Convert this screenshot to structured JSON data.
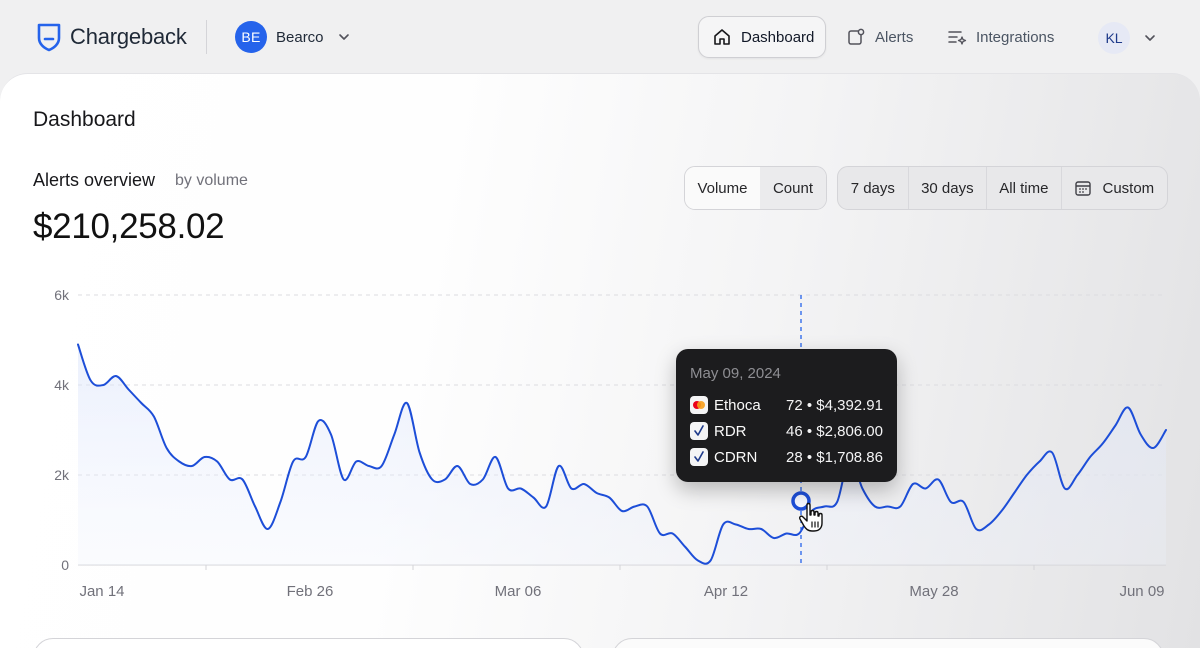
{
  "app": {
    "name": "Chargeback"
  },
  "org": {
    "initials": "BE",
    "name": "Bearco"
  },
  "nav": {
    "items": [
      {
        "label": "Dashboard",
        "icon": "home-icon",
        "active": true
      },
      {
        "label": "Alerts",
        "icon": "alert-icon",
        "active": false
      },
      {
        "label": "Integrations",
        "icon": "integrations-icon",
        "active": false
      }
    ]
  },
  "user": {
    "initials": "KL"
  },
  "page": {
    "title": "Dashboard"
  },
  "overview": {
    "title": "Alerts overview",
    "subtitle": "by volume",
    "total": "$210,258.02"
  },
  "metric_toggle": {
    "options": [
      "Volume",
      "Count"
    ],
    "selected": "Volume"
  },
  "range_toggle": {
    "options": [
      "7 days",
      "30 days",
      "All time",
      "Custom"
    ],
    "custom_icon": "calendar-icon"
  },
  "tooltip": {
    "date": "May 09, 2024",
    "rows": [
      {
        "name": "Ethoca",
        "value": "72 • $4,392.91",
        "icon": "mastercard-icon"
      },
      {
        "name": "RDR",
        "value": "46 • $2,806.00",
        "icon": "visa-check-icon"
      },
      {
        "name": "CDRN",
        "value": "28 • $1,708.86",
        "icon": "visa-check-icon"
      }
    ]
  },
  "colors": {
    "accent": "#2563eb",
    "line": "#1d4ed8",
    "tooltip_bg": "#1c1c1e"
  },
  "chart_data": {
    "type": "area",
    "ylim": [
      0,
      6000
    ],
    "yticks": [
      "6k",
      "4k",
      "2k",
      "0"
    ],
    "xtick_labels": [
      "Jan 14",
      "Feb 26",
      "Mar 06",
      "Apr 12",
      "May 28",
      "Jun 09"
    ],
    "grid": true,
    "highlight_date": "May 09, 2024",
    "series": [
      {
        "values": [
          4900,
          4100,
          4000,
          4200,
          3900,
          3600,
          3300,
          2600,
          2300,
          2200,
          2400,
          2300,
          1900,
          1900,
          1300,
          800,
          1400,
          2300,
          2400,
          3200,
          2900,
          1900,
          2300,
          2200,
          2200,
          2900,
          3600,
          2500,
          1900,
          1900,
          2200,
          1800,
          1900,
          2400,
          1700,
          1700,
          1500,
          1300,
          2200,
          1700,
          1800,
          1600,
          1500,
          1200,
          1300,
          1300,
          700,
          700,
          400,
          100,
          100,
          900,
          900,
          800,
          800,
          600,
          700,
          700,
          1200,
          1300,
          1400,
          2400,
          1700,
          1300,
          1300,
          1300,
          1800,
          1700,
          1900,
          1400,
          1400,
          800,
          900,
          1200,
          1600,
          2000,
          2300,
          2500,
          1700,
          2000,
          2400,
          2700,
          3100,
          3500,
          2900,
          2600,
          3000
        ]
      }
    ]
  }
}
